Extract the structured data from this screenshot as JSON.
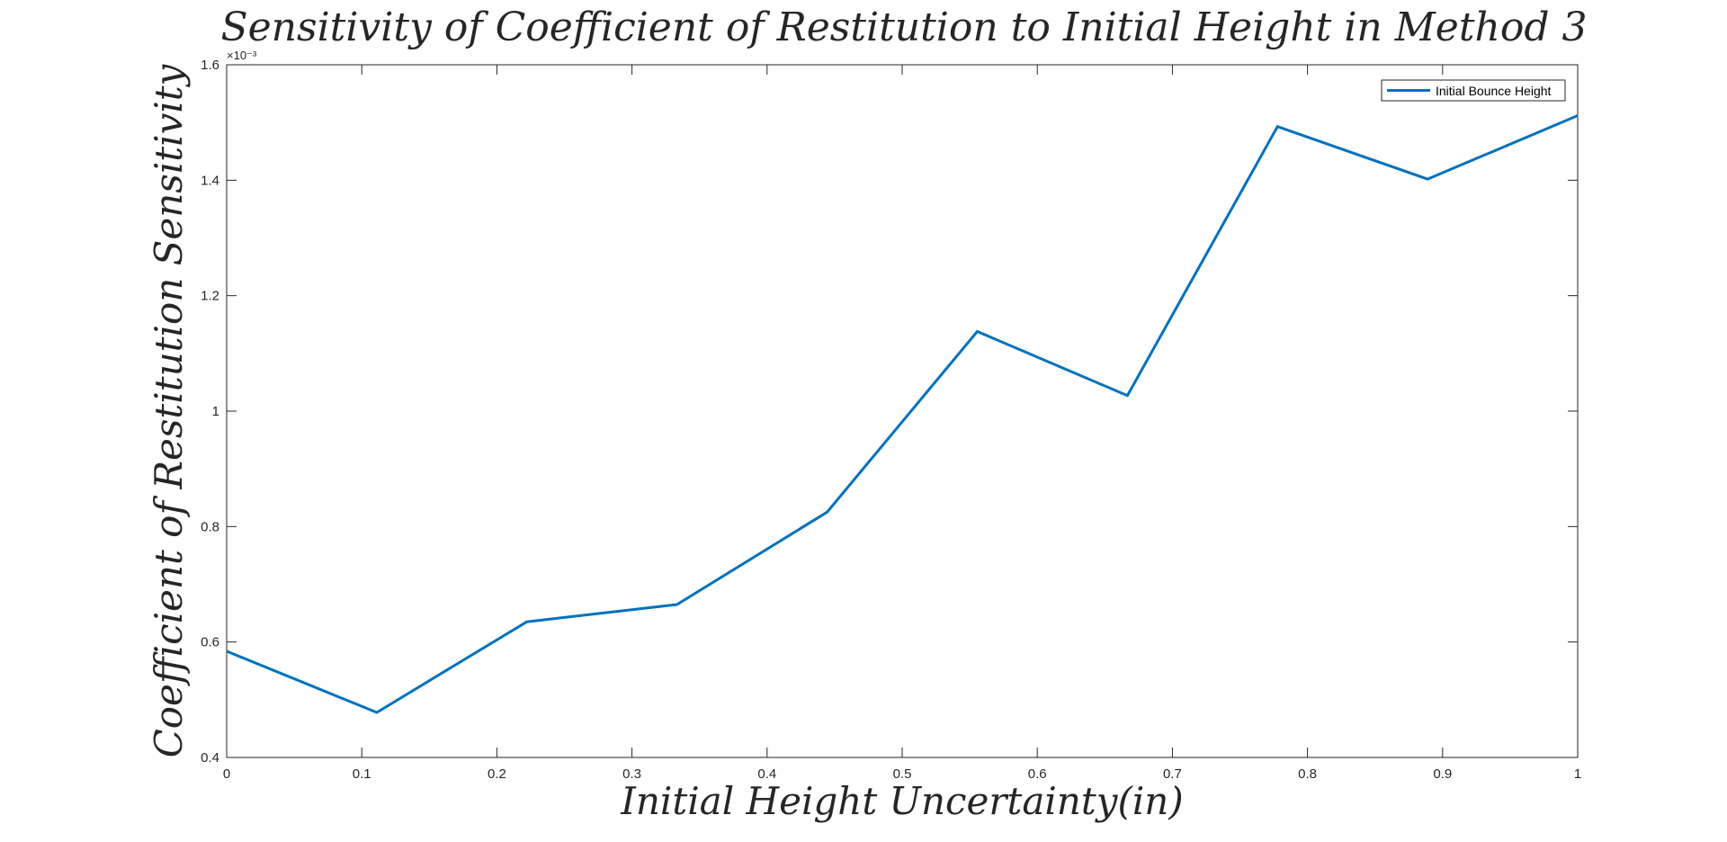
{
  "chart_data": {
    "type": "line",
    "title": "Sensitivity of Coefficient of Restitution to Initial Height in Method 3",
    "xlabel": "Initial Height Uncertainty(in)",
    "ylabel": "Coefficient of Restitution Sensitivity",
    "y_exponent_label": "×10⁻³",
    "xlim": [
      0,
      1
    ],
    "ylim": [
      0.4,
      1.6
    ],
    "x_ticks": [
      "0",
      "0.1",
      "0.2",
      "0.3",
      "0.4",
      "0.5",
      "0.6",
      "0.7",
      "0.8",
      "0.9",
      "1"
    ],
    "x_tick_values": [
      0,
      0.1,
      0.2,
      0.3,
      0.4,
      0.5,
      0.6,
      0.7,
      0.8,
      0.9,
      1
    ],
    "y_ticks": [
      "0.4",
      "0.6",
      "0.8",
      "1",
      "1.2",
      "1.4",
      "1.6"
    ],
    "y_tick_values": [
      0.4,
      0.6,
      0.8,
      1.0,
      1.2,
      1.4,
      1.6
    ],
    "grid": false,
    "legend_position": "top-right",
    "series": [
      {
        "name": "Initial Bounce Height",
        "color": "#0072BD",
        "x": [
          0,
          0.1111,
          0.2222,
          0.3333,
          0.4444,
          0.5556,
          0.6667,
          0.7778,
          0.8889,
          1.0
        ],
        "values": [
          0.584,
          0.478,
          0.635,
          0.665,
          0.825,
          1.138,
          1.027,
          1.493,
          1.402,
          1.512
        ]
      }
    ]
  }
}
